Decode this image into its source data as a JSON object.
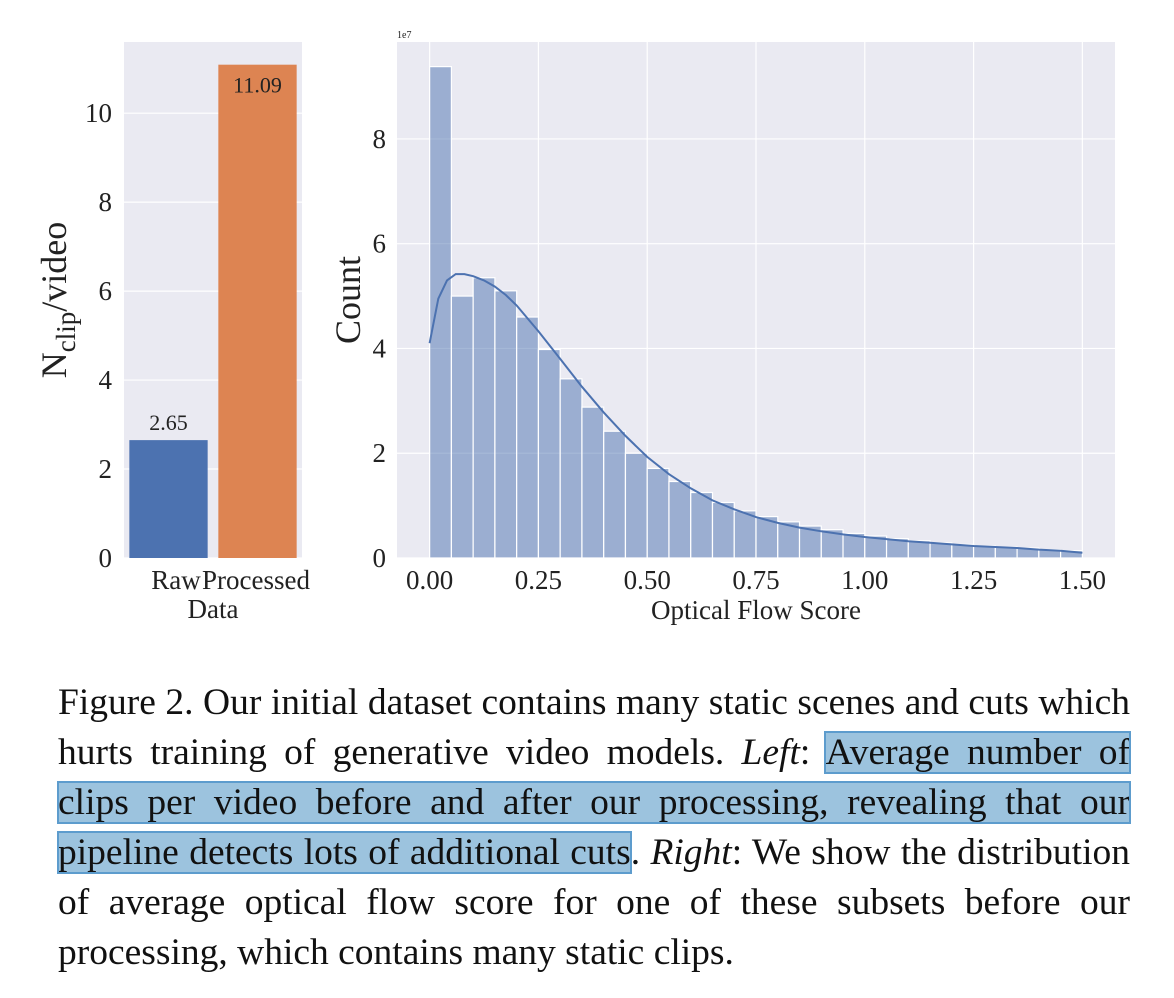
{
  "chart_data": [
    {
      "type": "bar",
      "categories": [
        "Raw",
        "Processed"
      ],
      "values": [
        2.65,
        11.09
      ],
      "value_labels": [
        "2.65",
        "11.09"
      ],
      "colors": [
        "#4c72b0",
        "#dd8452"
      ],
      "ylabel_base": "N",
      "ylabel_sub": "clip",
      "ylabel_rest": "/video",
      "xlabel": "Data",
      "ylim": [
        0,
        11.6
      ],
      "yticks": [
        "0",
        "2",
        "4",
        "6",
        "8",
        "10"
      ],
      "grid": true,
      "background": "#eaeaf2"
    },
    {
      "type": "histogram",
      "bin_width": 0.05,
      "bin_starts": [
        0.0,
        0.05,
        0.1,
        0.15,
        0.2,
        0.25,
        0.3,
        0.35,
        0.4,
        0.45,
        0.5,
        0.55,
        0.6,
        0.65,
        0.7,
        0.75,
        0.8,
        0.85,
        0.9,
        0.95,
        1.0,
        1.05,
        1.1,
        1.15,
        1.2,
        1.25,
        1.3,
        1.35,
        1.4,
        1.45
      ],
      "counts": [
        9.38,
        5.0,
        5.35,
        5.1,
        4.6,
        3.98,
        3.42,
        2.88,
        2.42,
        2.0,
        1.71,
        1.46,
        1.25,
        1.06,
        0.9,
        0.79,
        0.69,
        0.61,
        0.54,
        0.47,
        0.42,
        0.37,
        0.33,
        0.29,
        0.26,
        0.23,
        0.21,
        0.19,
        0.16,
        0.14
      ],
      "kde_x": [
        0.0,
        0.02,
        0.04,
        0.06,
        0.08,
        0.1,
        0.125,
        0.15,
        0.175,
        0.2,
        0.25,
        0.3,
        0.35,
        0.4,
        0.45,
        0.5,
        0.55,
        0.6,
        0.65,
        0.7,
        0.75,
        0.8,
        0.85,
        0.9,
        0.95,
        1.0,
        1.05,
        1.1,
        1.15,
        1.2,
        1.25,
        1.3,
        1.35,
        1.4,
        1.45,
        1.5
      ],
      "kde_y": [
        4.1,
        4.95,
        5.3,
        5.42,
        5.42,
        5.38,
        5.3,
        5.18,
        5.02,
        4.82,
        4.33,
        3.8,
        3.27,
        2.78,
        2.33,
        1.93,
        1.6,
        1.33,
        1.1,
        0.93,
        0.78,
        0.67,
        0.58,
        0.51,
        0.45,
        0.4,
        0.36,
        0.32,
        0.29,
        0.26,
        0.23,
        0.21,
        0.19,
        0.16,
        0.14,
        0.1
      ],
      "bar_color": "#4c72b0",
      "bar_opacity": 0.5,
      "line_color": "#4c72b0",
      "xlabel": "Optical Flow Score",
      "ylabel": "Count",
      "offset_label": "1e7",
      "xlim": [
        -0.075,
        1.575
      ],
      "ylim": [
        0,
        9.85
      ],
      "xticks": [
        0.0,
        0.25,
        0.5,
        0.75,
        1.0,
        1.25,
        1.5
      ],
      "xtick_labels": [
        "0.00",
        "0.25",
        "0.50",
        "0.75",
        "1.00",
        "1.25",
        "1.50"
      ],
      "yticks": [
        0,
        2,
        4,
        6,
        8
      ],
      "ytick_labels": [
        "0",
        "2",
        "4",
        "6",
        "8"
      ],
      "grid": true,
      "background": "#eaeaf2"
    }
  ],
  "caption": {
    "lead": "Figure 2. Our initial dataset contains many static scenes and cuts which hurts training of generative video models. ",
    "left_label": "Left",
    "left_sep": ": ",
    "highlighted": "Average number of clips per video before and after our processing, revealing that our pipeline detects lots of additional cuts",
    "after_highlight": ". ",
    "right_label": "Right",
    "right_text": ": We show the distribution of average optical flow score for one of these subsets before our processing, which contains many static clips."
  }
}
